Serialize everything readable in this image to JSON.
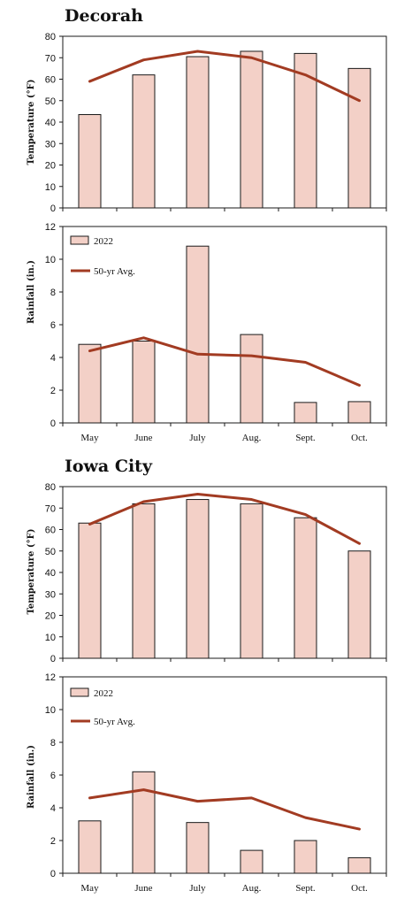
{
  "colors": {
    "bar_fill": "#f3d0c7",
    "bar_stroke": "#1a1a1a",
    "line": "#a23b22",
    "axis": "#1a1a1a"
  },
  "chart_data": [
    {
      "type": "bar",
      "title": "Decorah",
      "ylabel": "Temperature (°F)",
      "categories": [
        "May",
        "June",
        "July",
        "Aug.",
        "Sept.",
        "Oct."
      ],
      "ylim": [
        0,
        80
      ],
      "yticks": [
        0,
        10,
        20,
        30,
        40,
        50,
        60,
        70,
        80
      ],
      "series": [
        {
          "type": "bar",
          "values": [
            43.5,
            62,
            70.5,
            73,
            72,
            65
          ]
        },
        {
          "type": "line",
          "values": [
            59,
            69,
            73,
            70,
            62,
            50
          ]
        }
      ]
    },
    {
      "type": "bar",
      "title": "",
      "ylabel": "Rainfall (in.)",
      "categories": [
        "May",
        "June",
        "July",
        "Aug.",
        "Sept.",
        "Oct."
      ],
      "ylim": [
        0,
        12
      ],
      "yticks": [
        0,
        2,
        4,
        6,
        8,
        10,
        12
      ],
      "legend": [
        "2022",
        "50-yr Avg."
      ],
      "series": [
        {
          "type": "bar",
          "name": "2022",
          "values": [
            4.8,
            5,
            10.8,
            5.4,
            1.25,
            1.3
          ]
        },
        {
          "type": "line",
          "name": "50-yr Avg.",
          "values": [
            4.4,
            5.2,
            4.2,
            4.1,
            3.7,
            2.3
          ]
        }
      ]
    },
    {
      "type": "bar",
      "title": "Iowa City",
      "ylabel": "Temperature (°F)",
      "categories": [
        "May",
        "June",
        "July",
        "Aug.",
        "Sept.",
        "Oct."
      ],
      "ylim": [
        0,
        80
      ],
      "yticks": [
        0,
        10,
        20,
        30,
        40,
        50,
        60,
        70,
        80
      ],
      "series": [
        {
          "type": "bar",
          "values": [
            63,
            72,
            74,
            72,
            65.5,
            50
          ]
        },
        {
          "type": "line",
          "values": [
            62.5,
            73,
            76.5,
            74,
            67,
            53.5
          ]
        }
      ]
    },
    {
      "type": "bar",
      "title": "",
      "ylabel": "Rainfall (in.)",
      "categories": [
        "May",
        "June",
        "July",
        "Aug.",
        "Sept.",
        "Oct."
      ],
      "ylim": [
        0,
        12
      ],
      "yticks": [
        0,
        2,
        4,
        6,
        8,
        10,
        12
      ],
      "legend": [
        "2022",
        "50-yr Avg."
      ],
      "series": [
        {
          "type": "bar",
          "name": "2022",
          "values": [
            3.2,
            6.2,
            3.1,
            1.4,
            2,
            0.95
          ]
        },
        {
          "type": "line",
          "name": "50-yr Avg.",
          "values": [
            4.6,
            5.1,
            4.4,
            4.6,
            3.4,
            2.7
          ]
        }
      ]
    }
  ]
}
